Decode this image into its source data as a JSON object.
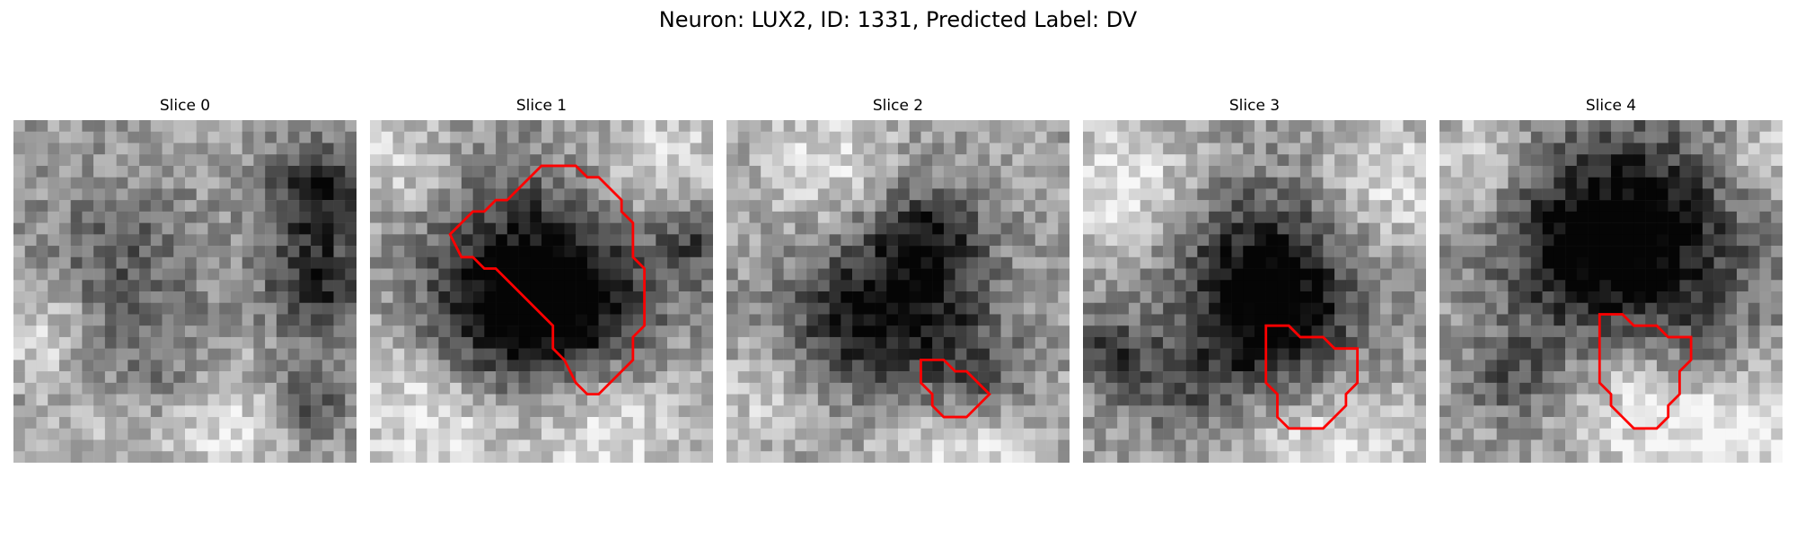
{
  "figure": {
    "title": "Neuron: LUX2, ID: 1331, Predicted Label: DV"
  },
  "panels": [
    {
      "title": "Slice 0"
    },
    {
      "title": "Slice 1"
    },
    {
      "title": "Slice 2"
    },
    {
      "title": "Slice 3"
    },
    {
      "title": "Slice 4"
    }
  ],
  "colors": {
    "contour": "#ff0000",
    "background": "#ffffff"
  }
}
